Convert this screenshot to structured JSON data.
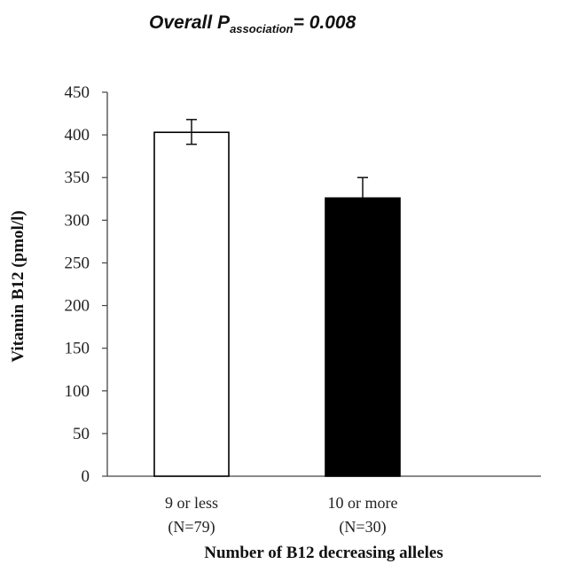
{
  "chart_data": {
    "type": "bar",
    "title": {
      "prefix": "Overall P",
      "subscript": "association",
      "suffix": "= 0.008"
    },
    "categories": [
      {
        "line1": "9 or less",
        "line2": "(N=79)"
      },
      {
        "line1": "10 or more",
        "line2": "(N=30)"
      }
    ],
    "values": [
      403,
      326
    ],
    "error_bars": [
      {
        "lower": 389,
        "upper": 418
      },
      {
        "lower": 326,
        "upper": 350
      }
    ],
    "bar_colors": [
      "#ffffff",
      "#000000"
    ],
    "bar_edge_color": "#000000",
    "xlabel": "Number  of B12 decreasing alleles",
    "ylabel": "Vitamin  B12  (pmol/l)",
    "ylim": [
      0,
      450
    ],
    "yticks": [
      "0",
      "50",
      "100",
      "150",
      "200",
      "250",
      "300",
      "350",
      "400",
      "450"
    ],
    "grid": false,
    "legend": "none"
  }
}
